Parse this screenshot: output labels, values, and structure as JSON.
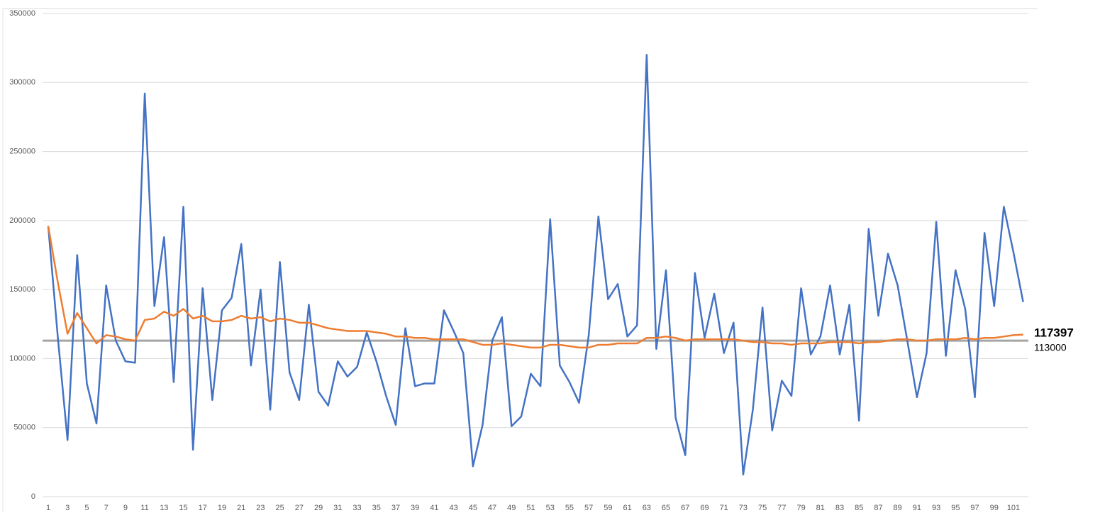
{
  "chart_data": {
    "type": "line",
    "categories": [
      "1",
      null,
      "3",
      null,
      "5",
      null,
      "7",
      null,
      "9",
      null,
      "11",
      null,
      "13",
      null,
      "15",
      null,
      "17",
      null,
      "19",
      null,
      "21",
      null,
      "23",
      null,
      "25",
      null,
      "27",
      null,
      "29",
      null,
      "31",
      null,
      "33",
      null,
      "35",
      null,
      "37",
      null,
      "39",
      null,
      "41",
      null,
      "43",
      null,
      "45",
      null,
      "47",
      null,
      "49",
      null,
      "51",
      null,
      "53",
      null,
      "55",
      null,
      "57",
      null,
      "59",
      null,
      "61",
      null,
      "63",
      null,
      "65",
      null,
      "67",
      null,
      "69",
      null,
      "71",
      null,
      "73",
      null,
      "75",
      null,
      "77",
      null,
      "79",
      null,
      "81",
      null,
      "83",
      null,
      "85",
      null,
      "87",
      null,
      "89",
      null,
      "91",
      null,
      "93",
      null,
      "95",
      null,
      "97",
      null,
      "99",
      null,
      "101",
      null
    ],
    "series": [
      {
        "color": "#4472c4",
        "values": [
          196000,
          115000,
          41000,
          175000,
          82000,
          53000,
          153000,
          113000,
          98000,
          97000,
          292000,
          138000,
          188000,
          83000,
          210000,
          34000,
          151000,
          70000,
          135000,
          144000,
          183000,
          95000,
          150000,
          63000,
          170000,
          90000,
          70000,
          139000,
          76000,
          66000,
          98000,
          87000,
          94000,
          119000,
          98000,
          73000,
          52000,
          122000,
          80000,
          82000,
          82000,
          135000,
          120000,
          104000,
          22000,
          52000,
          113000,
          130000,
          51000,
          58000,
          89000,
          80000,
          201000,
          95000,
          83000,
          68000,
          117000,
          203000,
          143000,
          154000,
          116000,
          124000,
          320000,
          107000,
          164000,
          57000,
          30000,
          162000,
          115000,
          147000,
          104000,
          126000,
          16000,
          63000,
          137000,
          48000,
          84000,
          73000,
          151000,
          103000,
          116000,
          153000,
          103000,
          139000,
          55000,
          194000,
          131000,
          176000,
          153000,
          113000,
          72000,
          104000,
          199000,
          102000,
          164000,
          136000,
          72000,
          191000,
          138000,
          210000,
          177000,
          141000
        ]
      },
      {
        "color": "#ed7d31",
        "values": [
          196000,
          155000,
          118000,
          133000,
          122000,
          111000,
          117000,
          116000,
          114000,
          113000,
          128000,
          129000,
          134000,
          131000,
          136000,
          129000,
          131000,
          127000,
          127000,
          128000,
          131000,
          129000,
          130000,
          127000,
          129000,
          128000,
          126000,
          126000,
          124000,
          122000,
          121000,
          120000,
          120000,
          120000,
          119000,
          118000,
          116000,
          116000,
          115000,
          115000,
          114000,
          114000,
          114000,
          114000,
          112000,
          110000,
          110000,
          111000,
          110000,
          109000,
          108000,
          108000,
          110000,
          110000,
          109000,
          108000,
          108000,
          110000,
          110000,
          111000,
          111000,
          111000,
          115000,
          115000,
          116000,
          115000,
          113000,
          114000,
          114000,
          114000,
          114000,
          114000,
          113000,
          112000,
          112000,
          111000,
          111000,
          110000,
          111000,
          111000,
          111000,
          112000,
          112000,
          112000,
          111000,
          112000,
          112000,
          113000,
          114000,
          114000,
          113000,
          113000,
          114000,
          114000,
          114000,
          115000,
          114000,
          115000,
          115000,
          116000,
          117000,
          117397
        ]
      }
    ],
    "hline": {
      "value": 113000,
      "color": "#a5a5a5"
    },
    "ylim": [
      0,
      350000
    ],
    "yticks": [
      0,
      50000,
      100000,
      150000,
      200000,
      250000,
      300000,
      350000
    ],
    "grid": true
  }
}
